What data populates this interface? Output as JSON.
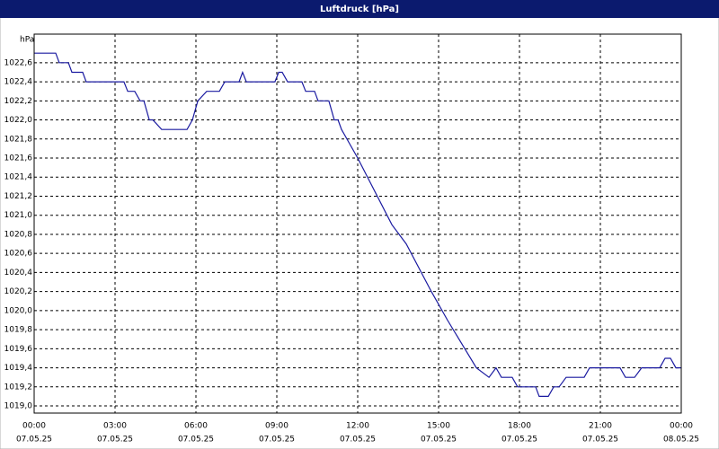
{
  "chart_data": {
    "type": "line",
    "title": "Luftdruck [hPa]",
    "y_unit": "hPa",
    "color": "#1a1aa0",
    "grid": true,
    "x": [
      0,
      0.8,
      0.93,
      1.27,
      1.4,
      1.8,
      1.93,
      3.33,
      3.47,
      3.73,
      3.93,
      4.07,
      4.27,
      4.4,
      4.73,
      5.67,
      5.87,
      6.07,
      6.4,
      6.87,
      7.07,
      7.6,
      7.73,
      7.87,
      8.93,
      9.07,
      9.2,
      9.4,
      9.93,
      10.07,
      10.4,
      10.53,
      10.93,
      11.13,
      11.27,
      11.4,
      12.0,
      13.27,
      13.8,
      14.73,
      15.33,
      16.4,
      16.87,
      17.13,
      17.33,
      17.73,
      17.93,
      18.6,
      18.73,
      19.07,
      19.27,
      19.47,
      19.73,
      20.4,
      20.6,
      21.73,
      21.93,
      22.27,
      22.53,
      22.73,
      23.2,
      23.4,
      23.6,
      23.8,
      24
    ],
    "values": [
      1022.7,
      1022.7,
      1022.6,
      1022.6,
      1022.5,
      1022.5,
      1022.4,
      1022.4,
      1022.3,
      1022.3,
      1022.2,
      1022.2,
      1022.0,
      1022.0,
      1021.9,
      1021.9,
      1022.0,
      1022.2,
      1022.3,
      1022.3,
      1022.4,
      1022.4,
      1022.5,
      1022.4,
      1022.4,
      1022.5,
      1022.5,
      1022.4,
      1022.4,
      1022.3,
      1022.3,
      1022.2,
      1022.2,
      1022.0,
      1022.0,
      1021.9,
      1021.6,
      1020.9,
      1020.7,
      1020.2,
      1019.9,
      1019.4,
      1019.3,
      1019.4,
      1019.3,
      1019.3,
      1019.2,
      1019.2,
      1019.1,
      1019.1,
      1019.2,
      1019.2,
      1019.3,
      1019.3,
      1019.4,
      1019.4,
      1019.3,
      1019.3,
      1019.4,
      1019.4,
      1019.4,
      1019.5,
      1019.5,
      1019.4,
      1019.4
    ],
    "xlim": [
      0,
      24
    ],
    "xticks": [
      {
        "value": 0,
        "label": "00:00"
      },
      {
        "value": 3,
        "label": "03:00"
      },
      {
        "value": 6,
        "label": "06:00"
      },
      {
        "value": 9,
        "label": "09:00"
      },
      {
        "value": 12,
        "label": "12:00"
      },
      {
        "value": 15,
        "label": "15:00"
      },
      {
        "value": 18,
        "label": "18:00"
      },
      {
        "value": 21,
        "label": "21:00"
      },
      {
        "value": 24,
        "label": "00:00"
      }
    ],
    "xtick_dates": [
      "07.05.25",
      "07.05.25",
      "07.05.25",
      "07.05.25",
      "07.05.25",
      "07.05.25",
      "07.05.25",
      "07.05.25",
      "08.05.25"
    ],
    "ylim": [
      1018.925,
      1022.9
    ],
    "yticks": [
      {
        "value": 1019.0,
        "label": "1019,0"
      },
      {
        "value": 1019.2,
        "label": "1019,2"
      },
      {
        "value": 1019.4,
        "label": "1019,4"
      },
      {
        "value": 1019.6,
        "label": "1019,6"
      },
      {
        "value": 1019.8,
        "label": "1019,8"
      },
      {
        "value": 1020.0,
        "label": "1020,0"
      },
      {
        "value": 1020.2,
        "label": "1020,2"
      },
      {
        "value": 1020.4,
        "label": "1020,4"
      },
      {
        "value": 1020.6,
        "label": "1020,6"
      },
      {
        "value": 1020.8,
        "label": "1020,8"
      },
      {
        "value": 1021.0,
        "label": "1021,0"
      },
      {
        "value": 1021.2,
        "label": "1021,2"
      },
      {
        "value": 1021.4,
        "label": "1021,4"
      },
      {
        "value": 1021.6,
        "label": "1021,6"
      },
      {
        "value": 1021.8,
        "label": "1021,8"
      },
      {
        "value": 1022.0,
        "label": "1022,0"
      },
      {
        "value": 1022.2,
        "label": "1022,2"
      },
      {
        "value": 1022.4,
        "label": "1022,4"
      },
      {
        "value": 1022.6,
        "label": "1022,6"
      }
    ]
  }
}
